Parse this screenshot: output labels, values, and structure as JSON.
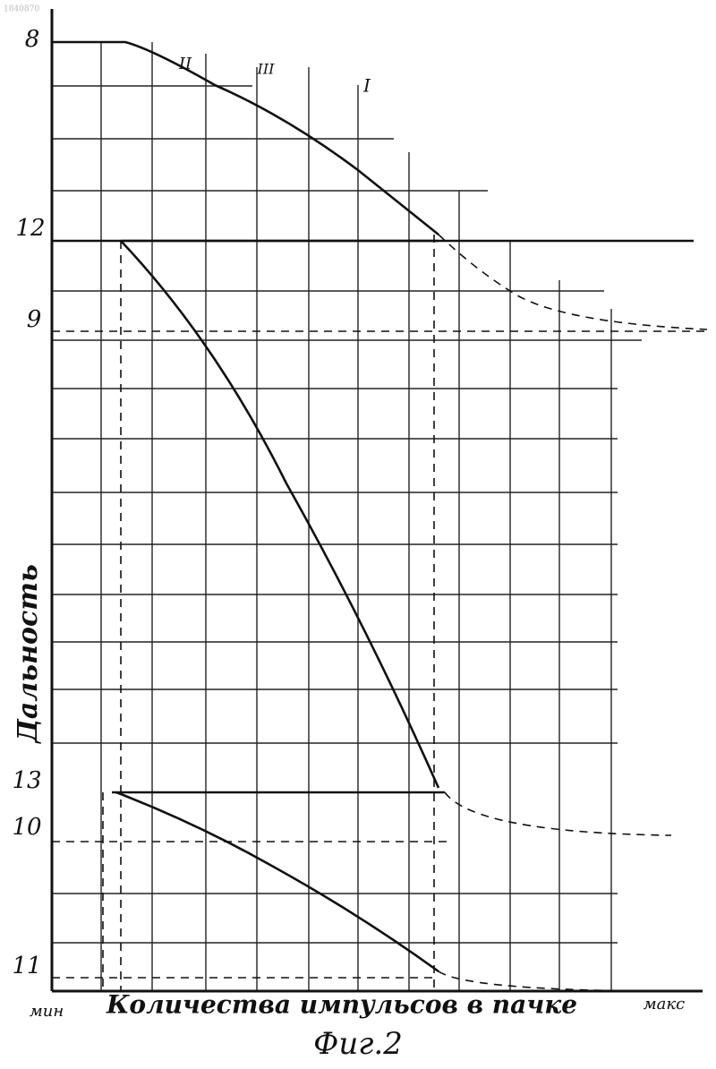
{
  "document_number": "1840870",
  "reference_numerals": [
    "8",
    "12",
    "9",
    "13",
    "10",
    "11"
  ],
  "curve_labels": [
    "II",
    "III",
    "I"
  ],
  "y_axis_label": "Дальность",
  "x_axis": {
    "min_label": "мин",
    "label": "Количества импульсов в пачке",
    "max_label": "макс"
  },
  "caption": "Фиг.2"
}
